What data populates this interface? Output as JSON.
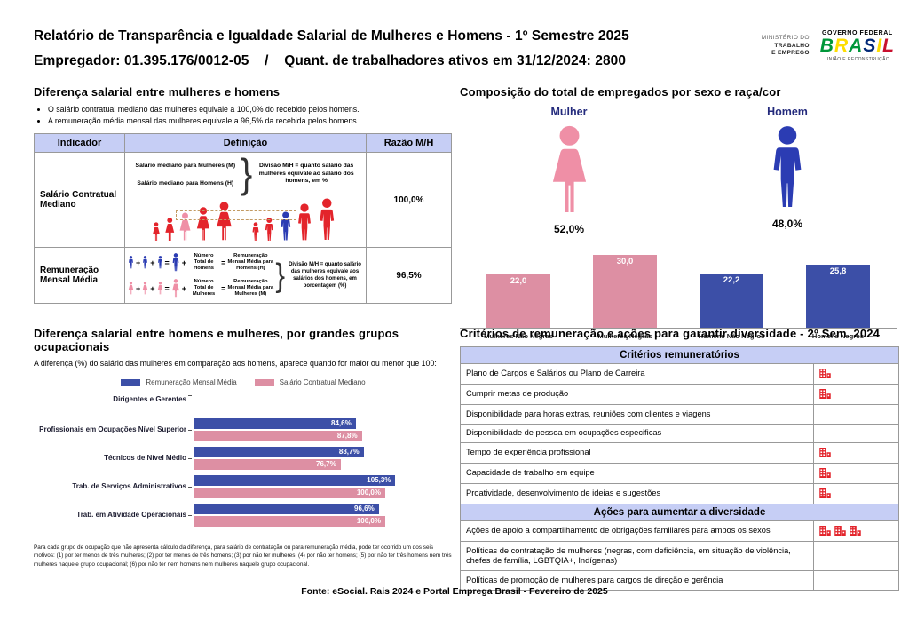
{
  "header": {
    "title": "Relatório de Transparência e Igualdade Salarial de Mulheres e Homens - 1º Semestre 2025",
    "subtitle": "Empregador: 01.395.176/0012-05    /    Quant. de trabalhadores ativos em 31/12/2024: 2800",
    "ministry": {
      "line1": "MINISTÉRIO DO",
      "line2": "TRABALHO",
      "line3": "E EMPREGO"
    },
    "gov": {
      "top": "GOVERNO FEDERAL",
      "brand": "BRASIL",
      "bottom": "UNIÃO E RECONSTRUÇÃO"
    }
  },
  "left_top": {
    "title": "Diferença salarial entre mulheres e homens",
    "bullets": [
      "O salário contratual mediano das mulheres equivale a 100,0% do recebido pelos homens.",
      "A remuneração média mensal das mulheres equivale a 96,5% da recebida pelos homens."
    ],
    "table": {
      "col_indicator": "Indicador",
      "col_definition": "Definição",
      "col_ratio": "Razão M/H",
      "row1": {
        "indicator": "Salário Contratual Mediano",
        "def_women": "Salário mediano para Mulheres (M)",
        "def_men": "Salário mediano para Homens (H)",
        "note": "Divisão M/H = quanto salário das mulheres equivale ao salário dos homens, em %",
        "ratio": "100,0%"
      },
      "row2": {
        "indicator": "Remuneração Mensal Média",
        "men_total": "Número Total de Homens",
        "men_result": "Remuneração Mensal Média para Homens (H)",
        "women_total": "Número Total de Mulheres",
        "women_result": "Remuneração Mensal Média para Mulheres (M)",
        "note": "Divisão M/H = quanto salário das mulheres equivale aos salários dos homens, em porcentagem (%)",
        "ratio": "96,5%"
      }
    }
  },
  "right_top": {
    "title": "Composição do total de empregados por sexo e raça/cor",
    "female_label": "Mulher",
    "female_pct": "52,0%",
    "male_label": "Homem",
    "male_pct": "48,0%"
  },
  "left_bottom": {
    "title": "Diferença salarial entre homens e mulheres, por grandes grupos ocupacionais",
    "subtitle": "A diferença (%) do salário das mulheres em comparação aos homens, aparece quando for maior ou menor que 100:",
    "footnote": "Para cada grupo de ocupação que não apresenta cálculo da diferença, para salário de contratação ou para remuneração média, pode ter ocorrido um dos seis motivos: (1) por ter menos de três mulheres; (2) por ter menos de três homens; (3) por não ter mulheres; (4) por não ter homens; (5) por não ter três homens nem três mulheres naquele grupo ocupacional; (6) por não ter nem homens nem mulheres naquele grupo ocupacional."
  },
  "right_bottom": {
    "title": "Critérios de remuneração e ações para garantir diversidade - 2º Sem. 2024",
    "sections": [
      {
        "header": "Critérios remuneratórios",
        "rows": [
          {
            "label": "Plano de Cargos e Salários ou Plano de Carreira",
            "icons": 1
          },
          {
            "label": "Cumprir metas de produção",
            "icons": 1
          },
          {
            "label": "Disponibilidade para horas extras, reuniões com clientes e viagens",
            "icons": 0
          },
          {
            "label": "Disponibilidade de pessoa em ocupações especificas",
            "icons": 0
          },
          {
            "label": "Tempo de experiência profissional",
            "icons": 1
          },
          {
            "label": "Capacidade de trabalho em equipe",
            "icons": 1
          },
          {
            "label": "Proatividade, desenvolvimento de ideias e sugestões",
            "icons": 1
          }
        ]
      },
      {
        "header": "Ações para aumentar a diversidade",
        "rows": [
          {
            "label": "Ações de apoio a compartilhamento de obrigações familiares para ambos os sexos",
            "icons": 3
          },
          {
            "label": "Políticas de contratação de mulheres (negras, com deficiência, em situação de violência, chefes de família, LGBTQIA+, Indígenas)",
            "icons": 0
          },
          {
            "label": "Políticas de promoção de mulheres para cargos de direção e gerência",
            "icons": 0
          }
        ]
      }
    ]
  },
  "footer": "Fonte: eSocial. Rais 2024 e Portal Emprega Brasil - Fevereiro de 2025",
  "colors": {
    "blue": "#3c4fa7",
    "pink": "#dd8fa3",
    "red": "#e3242b",
    "icon_blue": "#2b3cb3",
    "icon_pink": "#ef8fa6",
    "lavender": "#c6cef5",
    "navy": "#232a7c",
    "brasil_palette": [
      "#009739",
      "#FEDD00",
      "#009739",
      "#002776",
      "#FEDD00",
      "#C8102E"
    ]
  },
  "chart_data": [
    {
      "type": "bar",
      "title": "Composição do total de empregados por sexo e raça/cor",
      "categories": [
        "Mulheres Não Negras",
        "Mulheres Negras",
        "Homens Não Negros",
        "Homens Negros"
      ],
      "values": [
        22.0,
        30.0,
        22.2,
        25.8
      ],
      "value_labels": [
        "22,0",
        "30,0",
        "22,2",
        "25,8"
      ],
      "bar_colors": [
        "#dd8fa3",
        "#dd8fa3",
        "#3c4fa7",
        "#3c4fa7"
      ],
      "xlabel": "",
      "ylabel": "",
      "ylim": [
        0,
        32
      ],
      "grid": false,
      "legend": "none"
    },
    {
      "type": "bar-horizontal-grouped",
      "title": "Diferença salarial entre homens e mulheres, por grandes grupos ocupacionais",
      "categories": [
        "Dirigentes e Gerentes",
        "Profissionais em Ocupações Nível Superior",
        "Técnicos de Nível Médio",
        "Trab. de Serviços Administrativos",
        "Trab. em Atividade Operacionais"
      ],
      "series": [
        {
          "name": "Remuneração Mensal Média",
          "color": "#3c4fa7",
          "values": [
            null,
            84.6,
            88.7,
            105.3,
            96.6
          ],
          "labels": [
            "",
            "84,6%",
            "88,7%",
            "105,3%",
            "96,6%"
          ]
        },
        {
          "name": "Salário Contratual Mediano",
          "color": "#dd8fa3",
          "values": [
            null,
            87.8,
            76.7,
            100.0,
            100.0
          ],
          "labels": [
            "",
            "87,8%",
            "76,7%",
            "100,0%",
            "100,0%"
          ]
        }
      ],
      "xlim": [
        0,
        110
      ],
      "grid": false,
      "legend": "top"
    }
  ]
}
